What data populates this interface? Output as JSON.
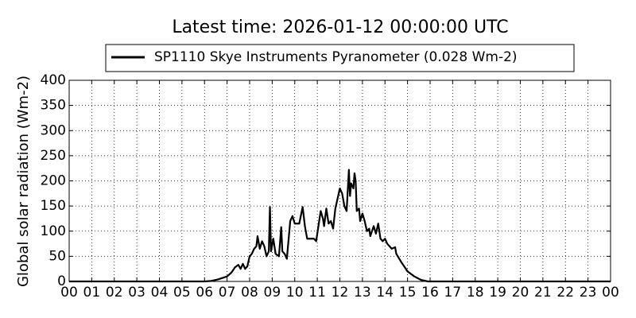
{
  "chart_data": {
    "type": "line",
    "title": "Latest time: 2026-01-12 00:00:00 UTC",
    "y_label": "Global solar radiation (Wm-2)",
    "grid": true,
    "legend_position": "top",
    "xlim": [
      0,
      24
    ],
    "ylim": [
      0,
      400
    ],
    "yticks": [
      0,
      50,
      100,
      150,
      200,
      250,
      300,
      350,
      400
    ],
    "xticks": [
      {
        "value": 0,
        "label": "00"
      },
      {
        "value": 1,
        "label": "01"
      },
      {
        "value": 2,
        "label": "02"
      },
      {
        "value": 3,
        "label": "03"
      },
      {
        "value": 4,
        "label": "04"
      },
      {
        "value": 5,
        "label": "05"
      },
      {
        "value": 6,
        "label": "06"
      },
      {
        "value": 7,
        "label": "07"
      },
      {
        "value": 8,
        "label": "08"
      },
      {
        "value": 9,
        "label": "09"
      },
      {
        "value": 10,
        "label": "10"
      },
      {
        "value": 11,
        "label": "11"
      },
      {
        "value": 12,
        "label": "12"
      },
      {
        "value": 13,
        "label": "13"
      },
      {
        "value": 14,
        "label": "14"
      },
      {
        "value": 15,
        "label": "15"
      },
      {
        "value": 16,
        "label": "16"
      },
      {
        "value": 17,
        "label": "17"
      },
      {
        "value": 18,
        "label": "18"
      },
      {
        "value": 19,
        "label": "19"
      },
      {
        "value": 20,
        "label": "20"
      },
      {
        "value": 21,
        "label": "21"
      },
      {
        "value": 22,
        "label": "22"
      },
      {
        "value": 23,
        "label": "23"
      },
      {
        "value": 24,
        "label": "00"
      }
    ],
    "x": [
      0,
      6.0,
      6.3,
      6.6,
      7.0,
      7.2,
      7.35,
      7.5,
      7.6,
      7.7,
      7.8,
      7.9,
      8.0,
      8.1,
      8.2,
      8.3,
      8.35,
      8.45,
      8.55,
      8.65,
      8.75,
      8.85,
      8.9,
      8.95,
      9.05,
      9.15,
      9.3,
      9.4,
      9.45,
      9.55,
      9.65,
      9.8,
      9.9,
      10.0,
      10.2,
      10.35,
      10.45,
      10.55,
      10.7,
      10.85,
      10.95,
      11.05,
      11.15,
      11.25,
      11.3,
      11.4,
      11.5,
      11.6,
      11.7,
      11.8,
      11.9,
      12.0,
      12.1,
      12.2,
      12.3,
      12.4,
      12.45,
      12.5,
      12.6,
      12.65,
      12.7,
      12.75,
      12.85,
      12.9,
      13.0,
      13.1,
      13.2,
      13.3,
      13.35,
      13.5,
      13.6,
      13.7,
      13.8,
      13.9,
      14.0,
      14.1,
      14.3,
      14.45,
      14.5,
      14.7,
      15.0,
      15.3,
      15.6,
      15.9,
      24
    ],
    "series": [
      {
        "name": "SP1110 Skye Instruments Pyranometer (0.028 Wm-2)",
        "color": "#000000",
        "values": [
          0,
          0,
          1,
          4,
          10,
          18,
          28,
          33,
          25,
          35,
          25,
          30,
          50,
          55,
          65,
          70,
          90,
          65,
          80,
          70,
          50,
          60,
          148,
          60,
          85,
          55,
          50,
          108,
          60,
          55,
          45,
          120,
          130,
          115,
          115,
          148,
          110,
          85,
          85,
          85,
          80,
          110,
          140,
          125,
          110,
          145,
          115,
          120,
          105,
          145,
          165,
          185,
          175,
          150,
          140,
          222,
          170,
          195,
          185,
          215,
          200,
          140,
          145,
          120,
          135,
          120,
          100,
          105,
          90,
          110,
          95,
          115,
          85,
          80,
          85,
          75,
          65,
          68,
          55,
          40,
          20,
          10,
          3,
          0,
          0
        ]
      }
    ]
  }
}
